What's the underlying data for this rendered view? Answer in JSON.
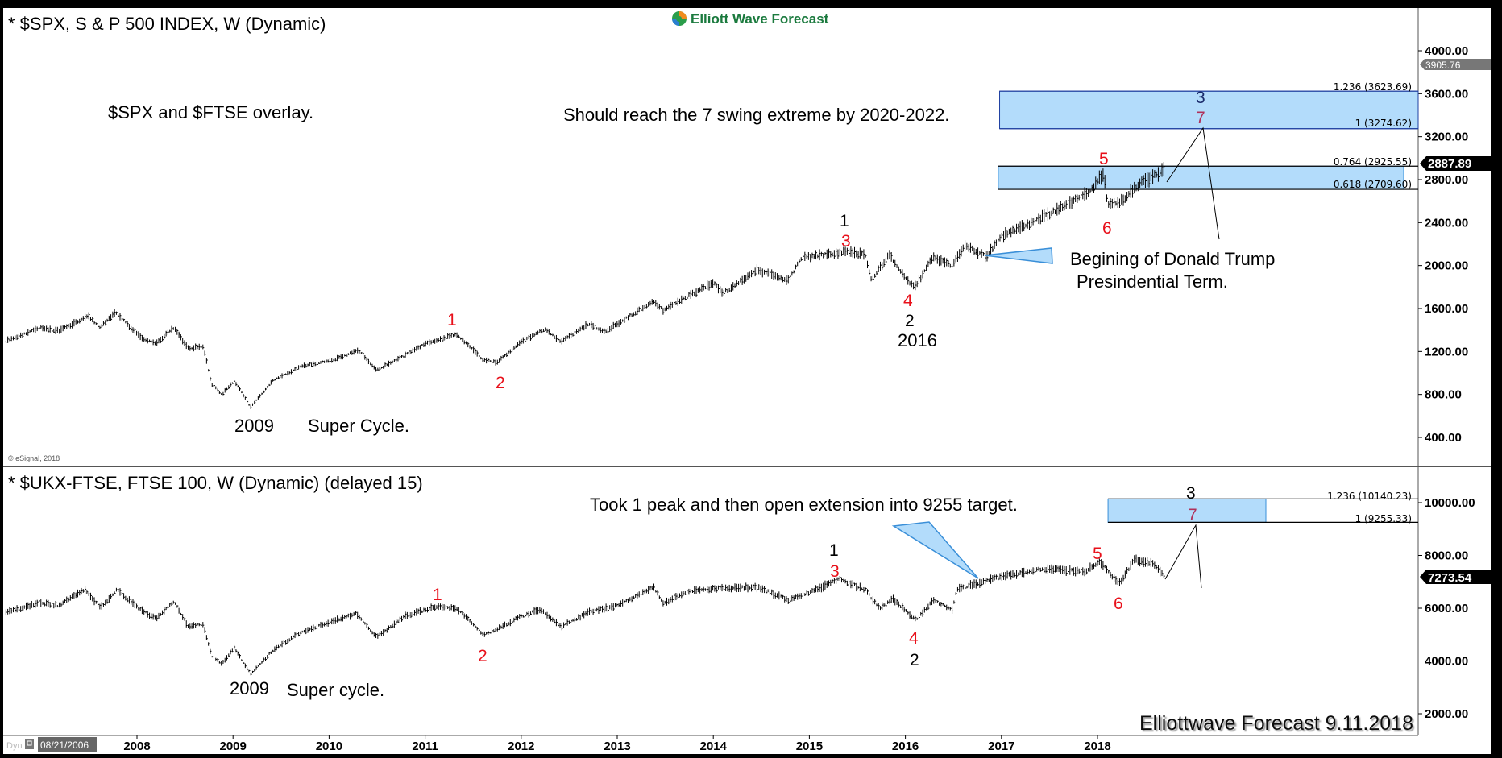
{
  "logo": {
    "text": "Elliott Wave Forecast",
    "color": "#1b7a3e"
  },
  "copyright": "© eSignal, 2018",
  "watermark": "Elliottwave Forecast 9.11.2018",
  "footer": {
    "dyn_label": "Dyn",
    "start_date": "08/21/2006"
  },
  "x_axis": {
    "ticks": [
      "2008",
      "2009",
      "2010",
      "2011",
      "2012",
      "2013",
      "2014",
      "2015",
      "2016",
      "2017",
      "2018"
    ]
  },
  "colors": {
    "zone_fill": "#b3dcfb",
    "zone_border": "#1f3fa0",
    "wave_red": "#e8101a",
    "wave_maroon": "#b0305a",
    "wave_navy": "#1b2b6b"
  },
  "top": {
    "title": "* $SPX, S & P 500 INDEX, W (Dynamic)",
    "note_overlay": "$SPX and $FTSE overlay.",
    "note_target": "Should reach the 7 swing extreme by 2020-2022.",
    "note_trump_1": "Begining of Donald Trump",
    "note_trump_2": "Presindential Term.",
    "year_2009": "2009",
    "super_cycle": "Super Cycle.",
    "year_2016": "2016",
    "waves": {
      "r1": "1",
      "r2": "2",
      "b1": "1",
      "r3": "3",
      "r4": "4",
      "b2": "2",
      "r5": "5",
      "r6": "6",
      "n3": "3",
      "m7": "7"
    },
    "fib": {
      "l1236": "1.236 (3623.69)",
      "l1": "1 (3274.62)",
      "l0764": "0.764 (2925.55)",
      "l0618": "0.618 (2709.60)"
    },
    "price_tags": {
      "upper": "3905.76",
      "last": "2887.89"
    },
    "y_ticks": [
      "4000.00",
      "3600.00",
      "3200.00",
      "2800.00",
      "2400.00",
      "2000.00",
      "1600.00",
      "1200.00",
      "800.00",
      "400.00"
    ]
  },
  "bottom": {
    "title": "* $UKX-FTSE, FTSE 100, W (Dynamic) (delayed 15)",
    "note_target": "Took 1 peak and then open extension into 9255 target.",
    "year_2009": "2009",
    "super_cycle": "Super cycle.",
    "waves": {
      "r1": "1",
      "r2": "2",
      "b1": "1",
      "r3": "3",
      "r4": "4",
      "b2": "2",
      "r5": "5",
      "r6": "6",
      "b3": "3",
      "m7": "7"
    },
    "fib": {
      "l1236": "1.236 (10140.23)",
      "l1": "1 (9255.33)"
    },
    "price_tags": {
      "last": "7273.54"
    },
    "y_ticks": [
      "10000.00",
      "8000.00",
      "6000.00",
      "4000.00",
      "2000.00"
    ]
  },
  "chart_data": [
    {
      "type": "bar",
      "title": "* $SPX, S & P 500 INDEX, W (Dynamic)",
      "ylim": [
        400,
        4000
      ],
      "y_ticks": [
        400,
        800,
        1200,
        1600,
        2000,
        2400,
        2800,
        3200,
        3600,
        4000
      ],
      "last": 2887.89,
      "zones": [
        {
          "from": 3274.62,
          "to": 3623.69,
          "start": "2016-12-25"
        },
        {
          "from": 2709.6,
          "to": 2925.55,
          "start": "2016-12-20"
        }
      ],
      "points": [
        [
          "2006-08-21",
          1300
        ],
        [
          "2006-12-31",
          1420
        ],
        [
          "2007-03-10",
          1390
        ],
        [
          "2007-07-01",
          1530
        ],
        [
          "2007-08-10",
          1420
        ],
        [
          "2007-10-10",
          1560
        ],
        [
          "2008-01-20",
          1320
        ],
        [
          "2008-03-15",
          1280
        ],
        [
          "2008-05-20",
          1420
        ],
        [
          "2008-07-15",
          1230
        ],
        [
          "2008-09-10",
          1250
        ],
        [
          "2008-10-10",
          900
        ],
        [
          "2008-11-20",
          800
        ],
        [
          "2009-01-05",
          930
        ],
        [
          "2009-03-09",
          680
        ],
        [
          "2009-06-01",
          930
        ],
        [
          "2009-09-15",
          1060
        ],
        [
          "2010-01-15",
          1120
        ],
        [
          "2010-04-20",
          1210
        ],
        [
          "2010-07-01",
          1030
        ],
        [
          "2010-09-15",
          1120
        ],
        [
          "2011-01-01",
          1270
        ],
        [
          "2011-05-01",
          1360
        ],
        [
          "2011-08-10",
          1120
        ],
        [
          "2011-10-01",
          1100
        ],
        [
          "2012-01-01",
          1290
        ],
        [
          "2012-04-01",
          1410
        ],
        [
          "2012-06-01",
          1290
        ],
        [
          "2012-09-15",
          1460
        ],
        [
          "2012-11-15",
          1380
        ],
        [
          "2013-01-15",
          1480
        ],
        [
          "2013-05-20",
          1670
        ],
        [
          "2013-06-25",
          1580
        ],
        [
          "2013-09-15",
          1700
        ],
        [
          "2014-01-01",
          1840
        ],
        [
          "2014-02-05",
          1740
        ],
        [
          "2014-06-15",
          1960
        ],
        [
          "2014-10-15",
          1860
        ],
        [
          "2014-12-01",
          2070
        ],
        [
          "2015-05-20",
          2130
        ],
        [
          "2015-08-01",
          2100
        ],
        [
          "2015-08-25",
          1870
        ],
        [
          "2015-11-01",
          2100
        ],
        [
          "2016-01-20",
          1830
        ],
        [
          "2016-02-11",
          1810
        ],
        [
          "2016-04-15",
          2080
        ],
        [
          "2016-06-25",
          2000
        ],
        [
          "2016-08-15",
          2190
        ],
        [
          "2016-11-04",
          2085
        ],
        [
          "2017-01-01",
          2270
        ],
        [
          "2017-06-01",
          2440
        ],
        [
          "2017-12-01",
          2680
        ],
        [
          "2018-01-26",
          2870
        ],
        [
          "2018-02-08",
          2560
        ],
        [
          "2018-04-01",
          2600
        ],
        [
          "2018-06-15",
          2770
        ],
        [
          "2018-09-11",
          2890
        ]
      ]
    },
    {
      "type": "bar",
      "title": "* $UKX-FTSE, FTSE 100, W (Dynamic) (delayed 15)",
      "ylim": [
        1000,
        11000
      ],
      "y_ticks": [
        2000,
        4000,
        6000,
        8000,
        10000
      ],
      "last": 7273.54,
      "zones": [
        {
          "from": 9255.33,
          "to": 10140.23,
          "start": "2018-02-10"
        }
      ],
      "points": [
        [
          "2006-08-21",
          5850
        ],
        [
          "2006-12-31",
          6200
        ],
        [
          "2007-03-10",
          6100
        ],
        [
          "2007-06-15",
          6700
        ],
        [
          "2007-08-15",
          6000
        ],
        [
          "2007-10-15",
          6700
        ],
        [
          "2008-01-20",
          5900
        ],
        [
          "2008-03-15",
          5600
        ],
        [
          "2008-05-20",
          6250
        ],
        [
          "2008-07-15",
          5300
        ],
        [
          "2008-09-10",
          5400
        ],
        [
          "2008-10-10",
          4200
        ],
        [
          "2008-11-20",
          3900
        ],
        [
          "2009-01-05",
          4500
        ],
        [
          "2009-03-09",
          3500
        ],
        [
          "2009-06-01",
          4400
        ],
        [
          "2009-09-15",
          5100
        ],
        [
          "2010-01-15",
          5500
        ],
        [
          "2010-04-15",
          5800
        ],
        [
          "2010-07-01",
          4900
        ],
        [
          "2010-10-15",
          5700
        ],
        [
          "2011-02-10",
          6050
        ],
        [
          "2011-05-01",
          6000
        ],
        [
          "2011-08-10",
          5000
        ],
        [
          "2011-10-01",
          5200
        ],
        [
          "2012-01-01",
          5700
        ],
        [
          "2012-03-15",
          5950
        ],
        [
          "2012-06-01",
          5300
        ],
        [
          "2012-09-15",
          5850
        ],
        [
          "2013-01-01",
          6100
        ],
        [
          "2013-05-20",
          6800
        ],
        [
          "2013-06-25",
          6200
        ],
        [
          "2013-09-15",
          6600
        ],
        [
          "2014-01-01",
          6750
        ],
        [
          "2014-06-15",
          6800
        ],
        [
          "2014-10-15",
          6300
        ],
        [
          "2015-01-01",
          6600
        ],
        [
          "2015-04-25",
          7100
        ],
        [
          "2015-08-01",
          6700
        ],
        [
          "2015-09-25",
          6000
        ],
        [
          "2015-11-15",
          6350
        ],
        [
          "2016-02-11",
          5550
        ],
        [
          "2016-04-15",
          6300
        ],
        [
          "2016-06-27",
          5950
        ],
        [
          "2016-07-15",
          6700
        ],
        [
          "2016-10-20",
          7000
        ],
        [
          "2017-01-01",
          7200
        ],
        [
          "2017-06-01",
          7500
        ],
        [
          "2017-11-15",
          7400
        ],
        [
          "2018-01-12",
          7750
        ],
        [
          "2018-03-23",
          6900
        ],
        [
          "2018-05-22",
          7850
        ],
        [
          "2018-08-01",
          7700
        ],
        [
          "2018-09-11",
          7270
        ]
      ]
    }
  ]
}
